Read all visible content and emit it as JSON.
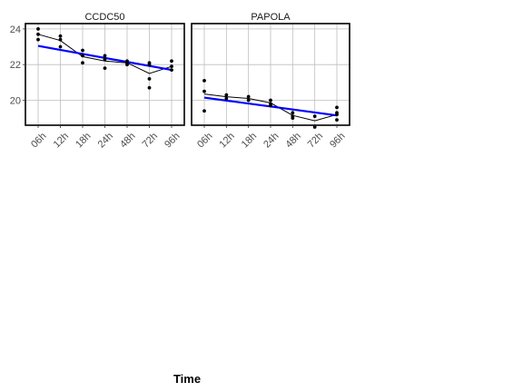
{
  "colors": {
    "fit_line": "#0000ff",
    "mean_line": "#000000",
    "points": "#000000",
    "grid": "#bebebe",
    "panel_border": "#000000",
    "tick_text": "#4d4d4d"
  },
  "chart_data": {
    "type": "scatter",
    "xlabel": "Time",
    "ylabel": "",
    "categories": [
      "06h",
      "12h",
      "18h",
      "24h",
      "48h",
      "72h",
      "96h"
    ],
    "ylim": [
      18.6,
      24.3
    ],
    "yticks": [
      20,
      22,
      24
    ],
    "grid": true,
    "panels": [
      {
        "title": "CCDC50",
        "points": [
          {
            "x": "06h",
            "y": 24.0
          },
          {
            "x": "06h",
            "y": 23.7
          },
          {
            "x": "06h",
            "y": 23.4
          },
          {
            "x": "12h",
            "y": 23.6
          },
          {
            "x": "12h",
            "y": 23.4
          },
          {
            "x": "12h",
            "y": 23.0
          },
          {
            "x": "18h",
            "y": 22.8
          },
          {
            "x": "18h",
            "y": 22.5
          },
          {
            "x": "18h",
            "y": 22.1
          },
          {
            "x": "24h",
            "y": 22.5
          },
          {
            "x": "24h",
            "y": 22.3
          },
          {
            "x": "24h",
            "y": 21.8
          },
          {
            "x": "48h",
            "y": 22.2
          },
          {
            "x": "48h",
            "y": 22.1
          },
          {
            "x": "48h",
            "y": 22.0
          },
          {
            "x": "72h",
            "y": 22.1
          },
          {
            "x": "72h",
            "y": 22.0
          },
          {
            "x": "72h",
            "y": 21.2
          },
          {
            "x": "72h",
            "y": 20.7
          },
          {
            "x": "96h",
            "y": 22.2
          },
          {
            "x": "96h",
            "y": 21.9
          },
          {
            "x": "96h",
            "y": 21.7
          }
        ],
        "means": [
          23.7,
          23.35,
          22.45,
          22.2,
          22.1,
          21.5,
          21.9
        ],
        "fit": {
          "start": 23.05,
          "end": 21.7
        }
      },
      {
        "title": "PAPOLA",
        "points": [
          {
            "x": "06h",
            "y": 21.1
          },
          {
            "x": "06h",
            "y": 20.5
          },
          {
            "x": "06h",
            "y": 19.4
          },
          {
            "x": "12h",
            "y": 20.3
          },
          {
            "x": "12h",
            "y": 20.1
          },
          {
            "x": "18h",
            "y": 20.2
          },
          {
            "x": "18h",
            "y": 20.0
          },
          {
            "x": "24h",
            "y": 20.0
          },
          {
            "x": "24h",
            "y": 19.8
          },
          {
            "x": "24h",
            "y": 19.7
          },
          {
            "x": "48h",
            "y": 19.3
          },
          {
            "x": "48h",
            "y": 19.1
          },
          {
            "x": "48h",
            "y": 19.0
          },
          {
            "x": "72h",
            "y": 19.1
          },
          {
            "x": "72h",
            "y": 18.5
          },
          {
            "x": "96h",
            "y": 19.6
          },
          {
            "x": "96h",
            "y": 19.3
          },
          {
            "x": "96h",
            "y": 19.2
          },
          {
            "x": "96h",
            "y": 18.9
          }
        ],
        "means": [
          20.35,
          20.2,
          20.1,
          19.85,
          19.15,
          18.85,
          19.2
        ],
        "fit": {
          "start": 20.15,
          "end": 19.15
        }
      }
    ]
  }
}
